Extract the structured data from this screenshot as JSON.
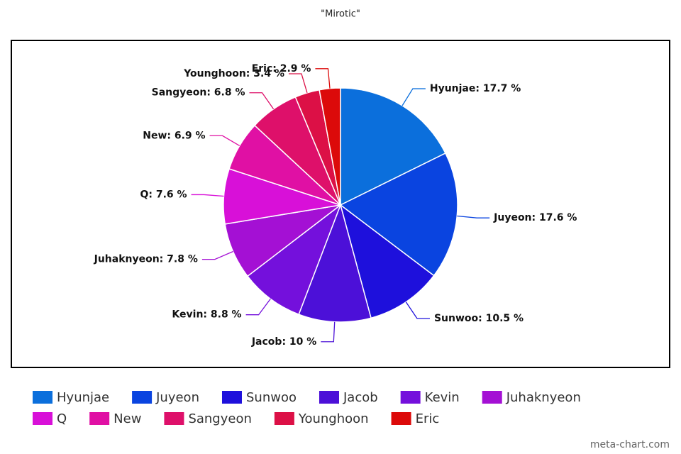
{
  "chart_data": {
    "type": "pie",
    "title": "\"Mirotic\"",
    "categories": [
      "Hyunjae",
      "Juyeon",
      "Sunwoo",
      "Jacob",
      "Kevin",
      "Juhaknyeon",
      "Q",
      "New",
      "Sangyeon",
      "Younghoon",
      "Eric"
    ],
    "values": [
      17.7,
      17.6,
      10.5,
      10,
      8.8,
      7.8,
      7.6,
      6.9,
      6.8,
      3.4,
      2.9
    ],
    "value_labels": [
      "Hyunjae: 17.7 %",
      "Juyeon: 17.6 %",
      "Sunwoo: 10.5 %",
      "Jacob: 10 %",
      "Kevin: 8.8 %",
      "Juhaknyeon: 7.8 %",
      "Q: 7.6 %",
      "New: 6.9 %",
      "Sangyeon: 6.8 %",
      "Younghoon: 3.4 %",
      "Eric: 2.9 %"
    ],
    "colors": [
      "#0b6fdc",
      "#0a44e0",
      "#1e10dc",
      "#4c10d8",
      "#7410dc",
      "#a410d4",
      "#d810d8",
      "#e010a4",
      "#de106a",
      "#dc1046",
      "#dc0a0a"
    ],
    "watermark": "meta-chart.com"
  }
}
